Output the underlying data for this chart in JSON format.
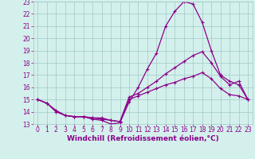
{
  "xlabel": "Windchill (Refroidissement éolien,°C)",
  "ylabel": "",
  "background_color": "#d4f0ec",
  "grid_color": "#a0c8c4",
  "line_color": "#8b008b",
  "xlim": [
    -0.5,
    23.5
  ],
  "ylim": [
    13,
    23
  ],
  "xticks": [
    0,
    1,
    2,
    3,
    4,
    5,
    6,
    7,
    8,
    9,
    10,
    11,
    12,
    13,
    14,
    15,
    16,
    17,
    18,
    19,
    20,
    21,
    22,
    23
  ],
  "yticks": [
    13,
    14,
    15,
    16,
    17,
    18,
    19,
    20,
    21,
    22,
    23
  ],
  "line1_x": [
    0,
    1,
    2,
    3,
    4,
    5,
    6,
    7,
    8,
    9,
    10,
    11,
    12,
    13,
    14,
    15,
    16,
    17,
    18,
    19,
    20,
    21,
    22,
    23
  ],
  "line1_y": [
    15.0,
    14.7,
    14.0,
    13.7,
    13.6,
    13.6,
    13.4,
    13.3,
    13.0,
    13.1,
    14.8,
    16.0,
    17.5,
    18.8,
    21.0,
    22.2,
    23.0,
    22.8,
    21.3,
    19.0,
    17.0,
    16.5,
    16.2,
    15.0
  ],
  "line2_x": [
    0,
    1,
    2,
    3,
    4,
    5,
    6,
    7,
    8,
    9,
    10,
    11,
    12,
    13,
    14,
    15,
    16,
    17,
    18,
    19,
    20,
    21,
    22,
    23
  ],
  "line2_y": [
    15.0,
    14.7,
    14.1,
    13.7,
    13.6,
    13.6,
    13.5,
    13.5,
    13.3,
    13.2,
    15.2,
    15.5,
    16.0,
    16.5,
    17.1,
    17.6,
    18.1,
    18.6,
    18.9,
    18.0,
    16.9,
    16.2,
    16.5,
    15.0
  ],
  "line3_x": [
    0,
    1,
    2,
    3,
    4,
    5,
    6,
    7,
    8,
    9,
    10,
    11,
    12,
    13,
    14,
    15,
    16,
    17,
    18,
    19,
    20,
    21,
    22,
    23
  ],
  "line3_y": [
    15.0,
    14.7,
    14.1,
    13.7,
    13.6,
    13.6,
    13.5,
    13.4,
    13.3,
    13.2,
    15.0,
    15.3,
    15.6,
    15.9,
    16.2,
    16.4,
    16.7,
    16.9,
    17.2,
    16.7,
    15.9,
    15.4,
    15.3,
    15.0
  ],
  "marker": "+",
  "markersize": 3,
  "linewidth": 0.9,
  "tick_fontsize": 5.5,
  "xlabel_fontsize": 6.5
}
